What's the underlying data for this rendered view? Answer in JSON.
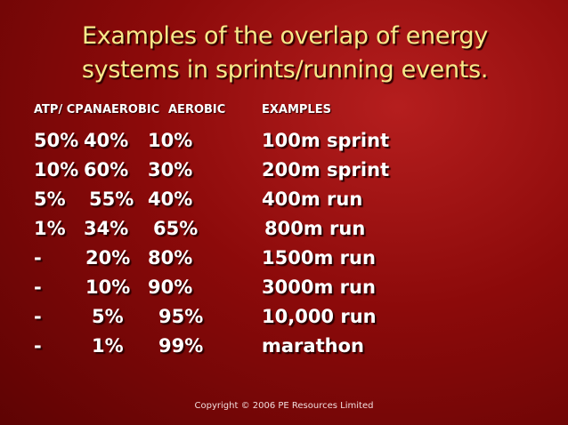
{
  "slide": {
    "title_lines": [
      "Examples of the overlap of energy",
      "systems in sprints/running events."
    ],
    "headers": {
      "atp_cp": "ATP/ CP",
      "anaerobic": "ANAEROBIC",
      "aerobic": "AEROBIC",
      "examples": "EXAMPLES"
    },
    "rows": [
      {
        "atp_cp": "50%",
        "anaerobic": "40%",
        "aerobic": "10%",
        "example": "100m sprint"
      },
      {
        "atp_cp": "10%",
        "anaerobic": "60%",
        "aerobic": "30%",
        "example": "200m sprint"
      },
      {
        "atp_cp": "5%",
        "anaerobic": "55%",
        "aerobic": "40%",
        "example": "400m run"
      },
      {
        "atp_cp": "1%",
        "anaerobic": "34%",
        "aerobic": "65%",
        "example": "800m run"
      },
      {
        "atp_cp": "-",
        "anaerobic": "20%",
        "aerobic": "80%",
        "example": "1500m run"
      },
      {
        "atp_cp": "-",
        "anaerobic": "10%",
        "aerobic": "90%",
        "example": "3000m run"
      },
      {
        "atp_cp": "-",
        "anaerobic": "5%",
        "aerobic": "95%",
        "example": "10,000 run"
      },
      {
        "atp_cp": "-",
        "anaerobic": "1%",
        "aerobic": "99%",
        "example": "marathon"
      }
    ],
    "footer": "Copyright © 2006 PE Resources Limited",
    "colors": {
      "background": "#8c0a0a",
      "title": "#f7e98a",
      "text": "#ffffff"
    }
  }
}
